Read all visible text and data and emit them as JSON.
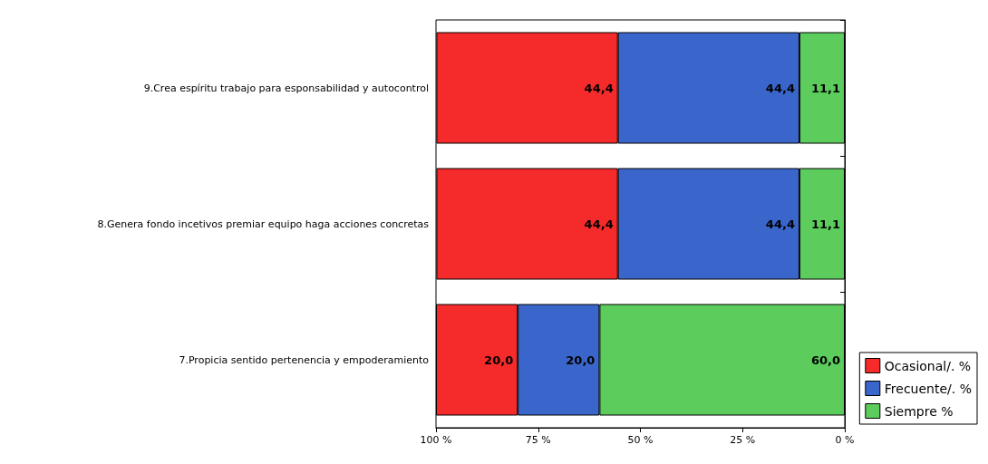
{
  "chart_data": {
    "type": "bar",
    "orientation": "horizontal",
    "stacked": true,
    "categories": [
      "9.Crea espíritu trabajo para esponsabilidad y autocontrol",
      "8.Genera fondo incetivos premiar equipo haga acciones concretas",
      "7.Propicia sentido pertenencia y empoderamiento"
    ],
    "series": [
      {
        "name": "Siempre %",
        "color": "#5ccc5c",
        "values": [
          11.1,
          11.1,
          60.0
        ],
        "value_labels": [
          "11,1",
          "11,1",
          "60,0"
        ]
      },
      {
        "name": "Frecuente/. %",
        "color": "#3a66cc",
        "values": [
          44.4,
          44.4,
          20.0
        ],
        "value_labels": [
          "44,4",
          "44,4",
          "20,0"
        ]
      },
      {
        "name": "Ocasional/. %",
        "color": "#f52a2a",
        "values": [
          44.4,
          44.4,
          20.0
        ],
        "value_labels": [
          "44,4",
          "44,4",
          "20,0"
        ]
      }
    ],
    "xlim": [
      100,
      0
    ],
    "xticks": [
      {
        "value": 100,
        "label": "100 %"
      },
      {
        "value": 75,
        "label": "75 %"
      },
      {
        "value": 50,
        "label": "50 %"
      },
      {
        "value": 25,
        "label": "25 %"
      },
      {
        "value": 0,
        "label": "0 %"
      }
    ],
    "grid": false,
    "legend": "bottom right"
  }
}
